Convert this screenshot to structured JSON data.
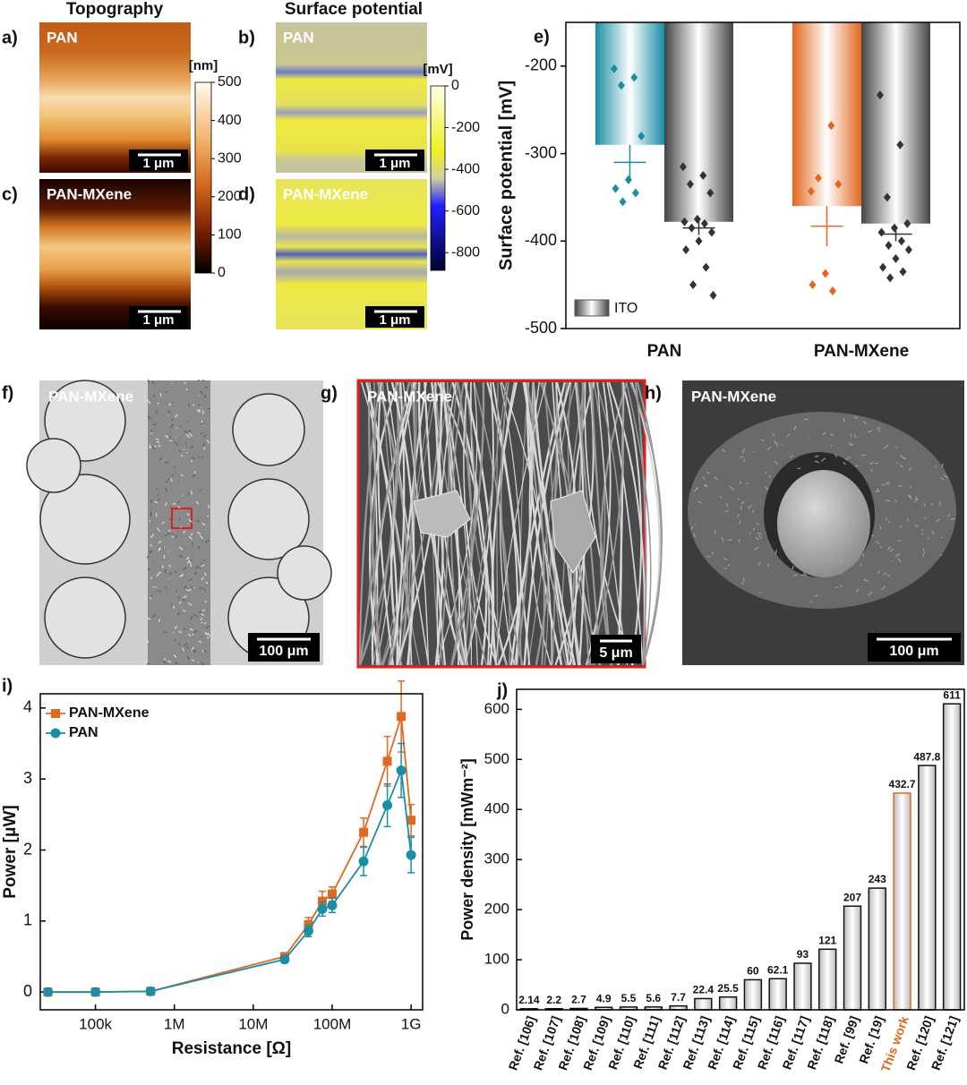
{
  "headers": [
    "Topography",
    "Surface potential"
  ],
  "maps": [
    {
      "panel": "a)",
      "sample": "PAN",
      "scale": "1 μm"
    },
    {
      "panel": "b)",
      "sample": "PAN",
      "scale": "1 μm"
    },
    {
      "panel": "c)",
      "sample": "PAN-MXene",
      "scale": "1 μm"
    },
    {
      "panel": "d)",
      "sample": "PAN-MXene",
      "scale": "1 μm"
    }
  ],
  "colorbars": [
    {
      "unit": "[nm]",
      "lim": [
        0,
        500
      ],
      "ticks": [
        0,
        100,
        200,
        300,
        400,
        500
      ]
    },
    {
      "unit": "[mV]",
      "lim": [
        -885,
        0
      ],
      "ticks": [
        0,
        -200,
        -400,
        -600,
        -800
      ]
    }
  ],
  "micrographs": [
    {
      "panel": "f)",
      "sample": "PAN-MXene",
      "scale": "100 μm"
    },
    {
      "panel": "g)",
      "sample": "PAN-MXene",
      "scale": "5 μm"
    },
    {
      "panel": "h)",
      "sample": "PAN-MXene",
      "scale": "100 μm"
    }
  ],
  "chart_data": [
    {
      "type": "bar",
      "panel": "e)",
      "ylabel": "Surface potential [mV]",
      "categories": [
        "PAN",
        "PAN-MXene"
      ],
      "ylim": [
        -500,
        -150
      ],
      "yticks": [
        -200,
        -300,
        -400,
        -500
      ],
      "legend": "lower left",
      "series": [
        {
          "colors": [
            "#1b8ea3",
            "#e2661f"
          ],
          "values": [
            -290,
            -360
          ],
          "mean": [
            -310,
            -383
          ],
          "error": [
            20,
            23
          ],
          "points": [
            [
              -203,
              -213,
              -222,
              -280,
              -330,
              -340,
              -345,
              -355
            ],
            [
              -343,
              -268,
              -328,
              -335,
              -437,
              -450,
              -457
            ]
          ]
        },
        {
          "name": "ITO",
          "color": "#777777",
          "point_color": "#333333",
          "values": [
            -378,
            -380
          ],
          "mean": [
            -385,
            -392
          ],
          "error": [
            8,
            8
          ],
          "points": [
            [
              -315,
              -325,
              -335,
              -345,
              -375,
              -378,
              -380,
              -385,
              -390,
              -400,
              -410,
              -430,
              -450,
              -462
            ],
            [
              -233,
              -290,
              -350,
              -380,
              -385,
              -390,
              -400,
              -405,
              -410,
              -420,
              -430,
              -435,
              -442
            ]
          ]
        }
      ]
    },
    {
      "type": "line",
      "panel": "i)",
      "xlabel": "Resistance [Ω]",
      "ylabel": "Power [μW]",
      "xscale": "log",
      "legend": "upper left",
      "x": [
        25000,
        100000,
        500000,
        25000000,
        50000000,
        75000000,
        100000000,
        250000000,
        500000000,
        750000000,
        1000000000
      ],
      "xlim": [
        20000,
        1400000000
      ],
      "xticks": [
        {
          "value": 100000,
          "label": "100k"
        },
        {
          "value": 1000000,
          "label": "1M"
        },
        {
          "value": 10000000,
          "label": "10M"
        },
        {
          "value": 100000000,
          "label": "100M"
        },
        {
          "value": 1000000000,
          "label": "1G"
        }
      ],
      "ylim": [
        -0.25,
        4.2
      ],
      "yticks": [
        0,
        1,
        2,
        3,
        4
      ],
      "series": [
        {
          "name": "PAN-MXene",
          "color": "#e0691f",
          "marker": "square",
          "values": [
            0,
            0,
            0.01,
            0.5,
            0.95,
            1.28,
            1.38,
            2.25,
            3.25,
            3.88,
            2.42
          ],
          "errors": [
            0.02,
            0.02,
            0.02,
            0.05,
            0.1,
            0.14,
            0.1,
            0.2,
            0.35,
            0.5,
            0.22
          ]
        },
        {
          "name": "PAN",
          "color": "#1b8ea3",
          "marker": "circle",
          "values": [
            0,
            0,
            0.01,
            0.46,
            0.86,
            1.17,
            1.22,
            1.84,
            2.63,
            3.12,
            1.93
          ],
          "errors": [
            0.02,
            0.02,
            0.02,
            0.05,
            0.08,
            0.1,
            0.1,
            0.2,
            0.3,
            0.38,
            0.25
          ]
        }
      ]
    },
    {
      "type": "bar",
      "panel": "j)",
      "ylabel": "Power density [mWm⁻²]",
      "categories": [
        "Ref. [106]",
        "Ref. [107]",
        "Ref. [108]",
        "Ref. [109]",
        "Ref. [110]",
        "Ref. [111]",
        "Ref. [112]",
        "Ref. [113]",
        "Ref. [114]",
        "Ref. [115]",
        "Ref. [116]",
        "Ref. [117]",
        "Ref. [118]",
        "Ref. [99]",
        "Ref. [19]",
        "This work",
        "Ref. [120]",
        "Ref. [121]"
      ],
      "values": [
        2.14,
        2.2,
        2.7,
        4.9,
        5.5,
        5.6,
        7.7,
        22.4,
        25.5,
        60,
        62.1,
        93,
        121,
        207,
        243,
        432.7,
        487.8,
        611
      ],
      "colors": [
        "#111111",
        "#111111",
        "#111111",
        "#111111",
        "#111111",
        "#111111",
        "#111111",
        "#111111",
        "#111111",
        "#111111",
        "#111111",
        "#111111",
        "#111111",
        "#111111",
        "#111111",
        "#e0691f",
        "#111111",
        "#111111"
      ],
      "ylim": [
        0,
        640
      ],
      "yticks": [
        0,
        100,
        200,
        300,
        400,
        500,
        600
      ]
    }
  ]
}
